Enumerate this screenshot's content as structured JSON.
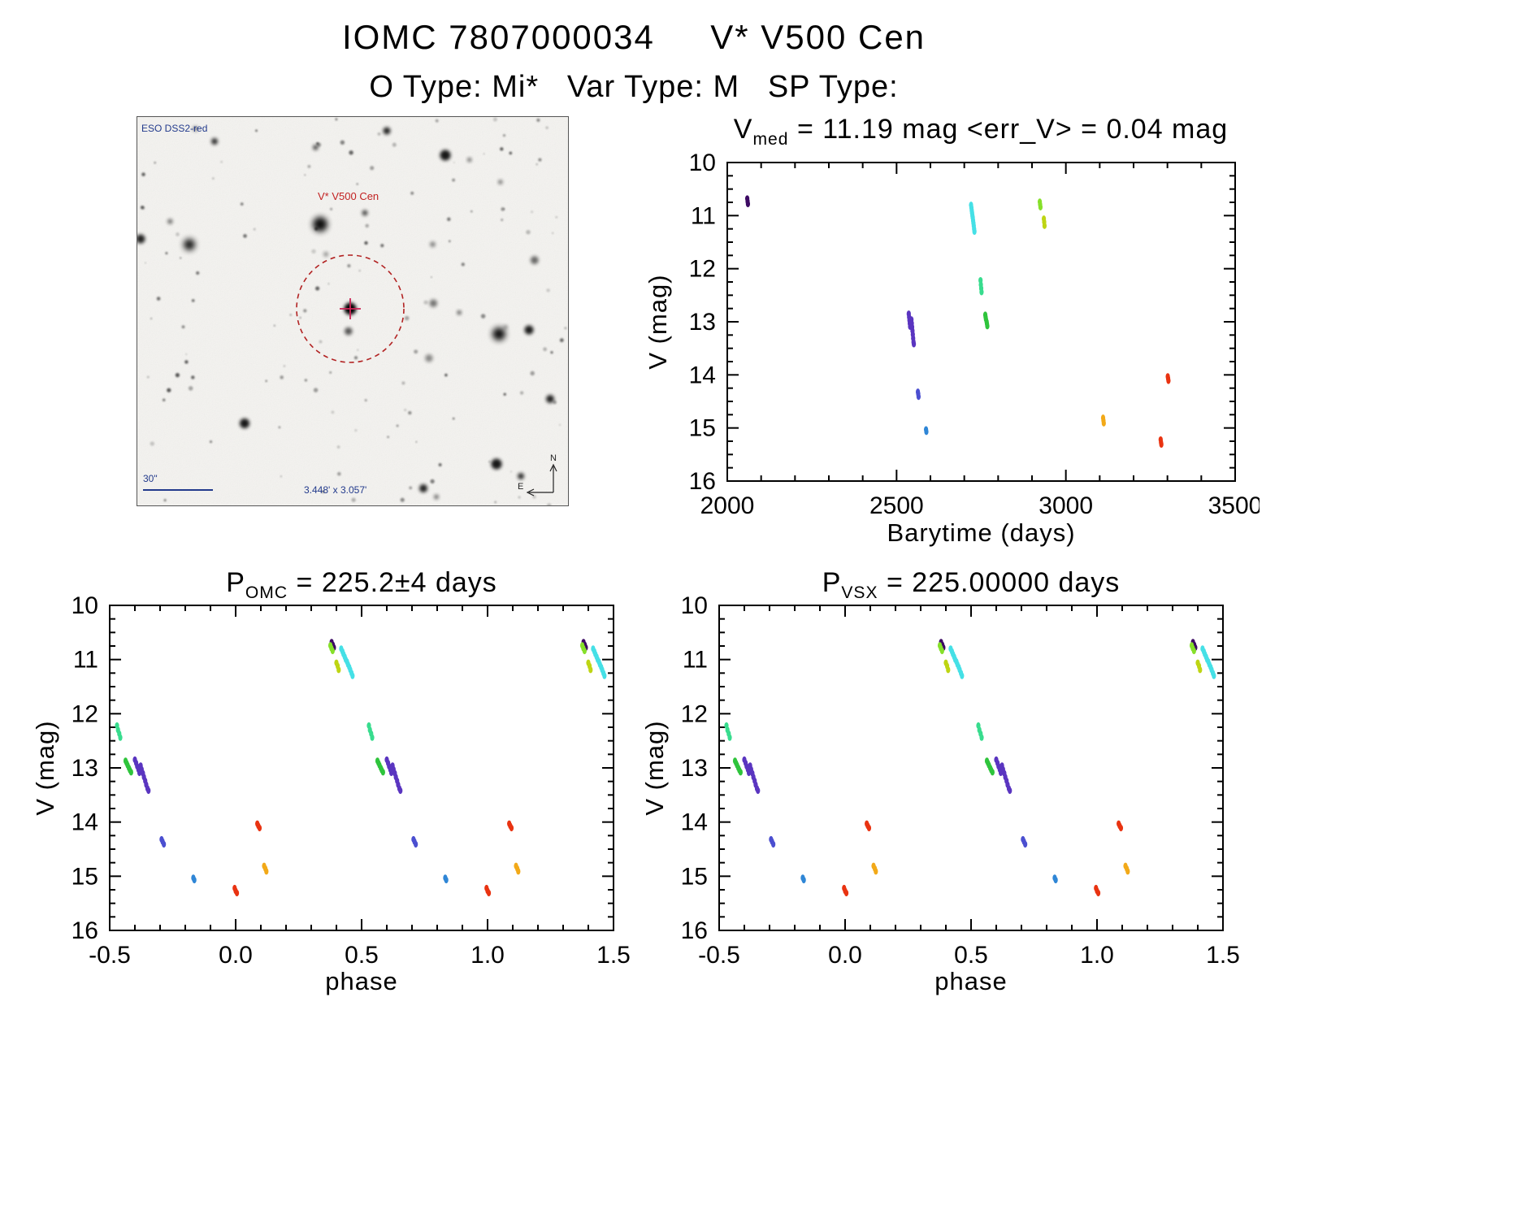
{
  "header": {
    "title": "IOMC 7807000034     V* V500 Cen",
    "subtitle": "O Type: Mi*   Var Type: M   SP Type:"
  },
  "finder": {
    "survey_label": "ESO DSS2-red",
    "target_label": "V* V500 Cen",
    "scale_label": "30\"",
    "fov_label": "3.448' x 3.057'",
    "compass_north": "N",
    "compass_east": "E"
  },
  "chart_data": {
    "point_format": [
      "barytime_days",
      "v_mag",
      "phase"
    ],
    "charts": [
      {
        "id": "lightcurve",
        "type": "scatter",
        "title_parts": {
          "pre": "V",
          "sub": "med",
          "post": " = 11.19 mag <err_V> = 0.04 mag"
        },
        "v_med_mag": 11.19,
        "err_v_mag": 0.04,
        "xlabel": "Barytime (days)",
        "ylabel": "V (mag)",
        "xlim": [
          2000,
          3500
        ],
        "xticks": [
          2000,
          2500,
          3000,
          3500
        ],
        "xtick_labels": [
          "2000",
          "2500",
          "3000",
          "3500"
        ],
        "xminor": 100,
        "ylim": [
          16,
          10
        ],
        "yticks": [
          10,
          11,
          12,
          13,
          14,
          15,
          16
        ],
        "ytick_labels": [
          "10",
          "11",
          "12",
          "13",
          "14",
          "15",
          "16"
        ],
        "yminor": 0.25,
        "fold": false,
        "grid": false,
        "legend": "none"
      },
      {
        "id": "phase-omc",
        "type": "scatter",
        "title_parts": {
          "pre": "P",
          "sub": "OMC",
          "post": " = 225.2±4 days"
        },
        "period_days": "225.2±4",
        "xlabel": "phase",
        "ylabel": "V (mag)",
        "xlim": [
          -0.5,
          1.5
        ],
        "xticks": [
          -0.5,
          0.0,
          0.5,
          1.0,
          1.5
        ],
        "xtick_labels": [
          "-0.5",
          "0.0",
          "0.5",
          "1.0",
          "1.5"
        ],
        "xminor": 0.1,
        "ylim": [
          16,
          10
        ],
        "yticks": [
          10,
          11,
          12,
          13,
          14,
          15,
          16
        ],
        "ytick_labels": [
          "10",
          "11",
          "12",
          "13",
          "14",
          "15",
          "16"
        ],
        "yminor": 0.25,
        "fold": true,
        "grid": false,
        "legend": "none"
      },
      {
        "id": "phase-vsx",
        "type": "scatter",
        "title_parts": {
          "pre": "P",
          "sub": "VSX",
          "post": " = 225.00000 days"
        },
        "period_days": "225.00000",
        "xlabel": "phase",
        "ylabel": "V (mag)",
        "xlim": [
          -0.5,
          1.5
        ],
        "xticks": [
          -0.5,
          0.0,
          0.5,
          1.0,
          1.5
        ],
        "xtick_labels": [
          "-0.5",
          "0.0",
          "0.5",
          "1.0",
          "1.5"
        ],
        "xminor": 0.1,
        "ylim": [
          16,
          10
        ],
        "yticks": [
          10,
          11,
          12,
          13,
          14,
          15,
          16
        ],
        "ytick_labels": [
          "10",
          "11",
          "12",
          "13",
          "14",
          "15",
          "16"
        ],
        "yminor": 0.25,
        "fold": true,
        "grid": false,
        "legend": "none"
      }
    ],
    "groups": [
      {
        "name": "epoch-01",
        "color": "#3c0a63",
        "points": [
          [
            2059,
            10.68,
            0.381
          ],
          [
            2060,
            10.73,
            0.386
          ],
          [
            2061,
            10.78,
            0.39
          ]
        ]
      },
      {
        "name": "epoch-02",
        "color": "#5a35c0",
        "points": [
          [
            2536,
            12.85,
            0.6
          ],
          [
            2537,
            12.91,
            0.605
          ],
          [
            2538,
            12.97,
            0.609
          ],
          [
            2539,
            13.03,
            0.614
          ],
          [
            2540,
            13.09,
            0.618
          ],
          [
            2544,
            12.96,
            0.623
          ],
          [
            2545,
            13.03,
            0.627
          ],
          [
            2546,
            13.1,
            0.632
          ],
          [
            2547,
            13.17,
            0.636
          ],
          [
            2548,
            13.24,
            0.641
          ],
          [
            2549,
            13.31,
            0.645
          ],
          [
            2550,
            13.38,
            0.65
          ],
          [
            2551,
            13.42,
            0.654
          ]
        ]
      },
      {
        "name": "epoch-03",
        "color": "#4b4fd0",
        "points": [
          [
            2563,
            14.32,
            0.706
          ],
          [
            2564,
            14.36,
            0.71
          ],
          [
            2565,
            14.41,
            0.715
          ]
        ]
      },
      {
        "name": "epoch-04",
        "color": "#2f86d6",
        "points": [
          [
            2587,
            15.03,
            0.832
          ],
          [
            2588,
            15.07,
            0.836
          ]
        ]
      },
      {
        "name": "epoch-05",
        "color": "#45e0e6",
        "points": [
          [
            2720,
            10.8,
            0.419
          ],
          [
            2721,
            10.85,
            0.424
          ],
          [
            2722,
            10.9,
            0.428
          ],
          [
            2723,
            10.95,
            0.433
          ],
          [
            2724,
            11.0,
            0.437
          ],
          [
            2725,
            11.04,
            0.442
          ],
          [
            2726,
            11.09,
            0.446
          ],
          [
            2727,
            11.14,
            0.451
          ],
          [
            2728,
            11.19,
            0.455
          ],
          [
            2729,
            11.25,
            0.46
          ],
          [
            2730,
            11.3,
            0.464
          ]
        ]
      },
      {
        "name": "epoch-06",
        "color": "#38dc8e",
        "points": [
          [
            2748,
            12.22,
            0.529
          ],
          [
            2749,
            12.3,
            0.533
          ],
          [
            2750,
            12.37,
            0.538
          ],
          [
            2751,
            12.44,
            0.542
          ]
        ]
      },
      {
        "name": "epoch-07",
        "color": "#2fc43c",
        "points": [
          [
            2762,
            12.87,
            0.563
          ],
          [
            2763,
            12.91,
            0.567
          ],
          [
            2764,
            12.95,
            0.571
          ],
          [
            2766,
            13.0,
            0.576
          ],
          [
            2767,
            13.04,
            0.58
          ],
          [
            2768,
            13.08,
            0.585
          ]
        ]
      },
      {
        "name": "epoch-08",
        "color": "#86e02a",
        "points": [
          [
            2923,
            10.74,
            0.376
          ],
          [
            2924,
            10.79,
            0.38
          ],
          [
            2925,
            10.84,
            0.385
          ]
        ]
      },
      {
        "name": "epoch-09",
        "color": "#bed513",
        "points": [
          [
            2935,
            11.06,
            0.4
          ],
          [
            2936,
            11.12,
            0.405
          ],
          [
            2937,
            11.19,
            0.409
          ]
        ]
      },
      {
        "name": "epoch-10",
        "color": "#f2a918",
        "points": [
          [
            3110,
            14.81,
            0.113
          ],
          [
            3111,
            14.86,
            0.118
          ],
          [
            3112,
            14.91,
            0.122
          ]
        ]
      },
      {
        "name": "epoch-11",
        "color": "#e93311",
        "points": [
          [
            3280,
            15.22,
            0.996
          ],
          [
            3281,
            15.27,
            0.0
          ],
          [
            3282,
            15.31,
            0.005
          ]
        ]
      },
      {
        "name": "epoch-12",
        "color": "#e93311",
        "points": [
          [
            3301,
            14.03,
            0.086
          ],
          [
            3302,
            14.07,
            0.09
          ],
          [
            3303,
            14.11,
            0.095
          ]
        ]
      }
    ]
  }
}
